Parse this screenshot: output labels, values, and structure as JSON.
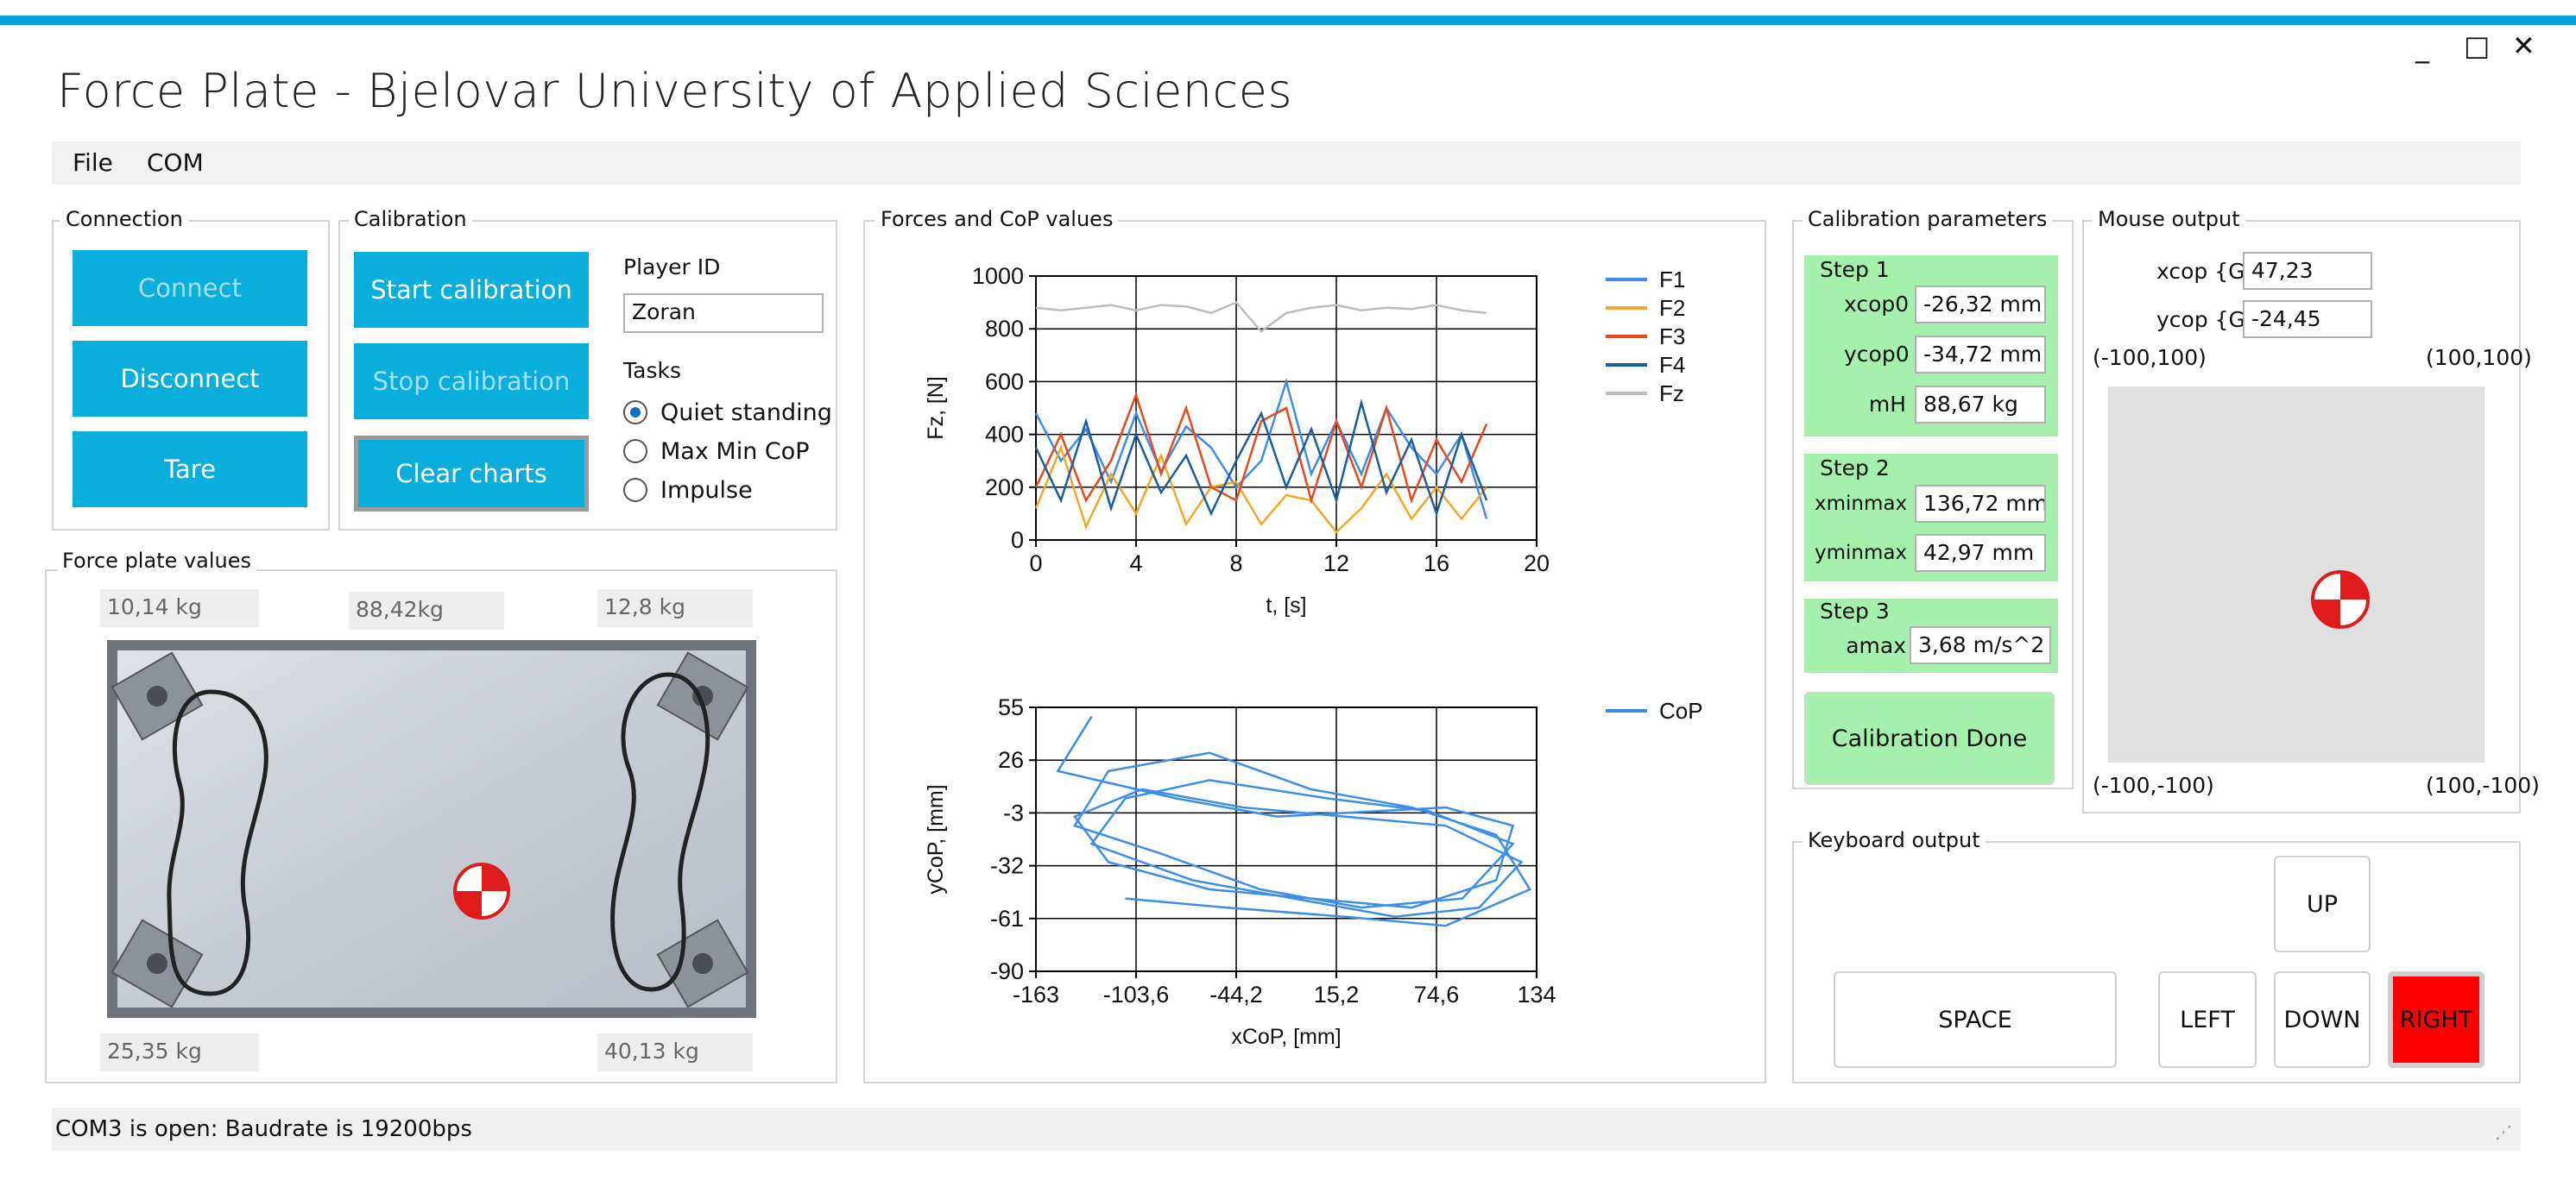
{
  "window": {
    "title": "Force Plate - Bjelovar University of Applied Sciences",
    "minimize": "_",
    "maximize": "□",
    "close": "✕"
  },
  "menu": {
    "file": "File",
    "com": "COM"
  },
  "connection": {
    "label": "Connection",
    "connect": "Connect",
    "disconnect": "Disconnect",
    "tare": "Tare"
  },
  "calibration": {
    "label": "Calibration",
    "start": "Start calibration",
    "stop": "Stop calibration",
    "clear": "Clear charts",
    "player_label": "Player ID",
    "player_value": "Zoran",
    "tasks_label": "Tasks",
    "tasks": [
      "Quiet standing",
      "Max Min CoP",
      "Impulse"
    ],
    "selected_task": "Quiet standing"
  },
  "plate": {
    "label": "Force plate values",
    "top_left": "10,14 kg",
    "top_center": "88,42kg",
    "top_right": "12,8 kg",
    "bottom_left": "25,35 kg",
    "bottom_right": "40,13 kg"
  },
  "charts_group": {
    "label": "Forces and CoP values"
  },
  "chart_data": [
    {
      "type": "line",
      "xlabel": "t, [s]",
      "ylabel": "Fz, [N]",
      "xlim": [
        0,
        20
      ],
      "ylim": [
        0,
        1000
      ],
      "xticks": [
        "0",
        "4",
        "8",
        "12",
        "16",
        "20"
      ],
      "yticks": [
        "0",
        "200",
        "400",
        "600",
        "800",
        "1000"
      ],
      "grid": true,
      "legend_position": "right",
      "colors": {
        "F1": "#3b8fe8",
        "F2": "#f5a623",
        "F3": "#e8491d",
        "F4": "#1a5e9a",
        "Fz": "#bdbdbd"
      },
      "x": [
        0,
        1,
        2,
        3,
        4,
        5,
        6,
        7,
        8,
        9,
        10,
        11,
        12,
        13,
        14,
        15,
        16,
        17,
        18
      ],
      "series": [
        {
          "name": "F1",
          "values": [
            480,
            300,
            420,
            220,
            480,
            260,
            430,
            350,
            200,
            300,
            600,
            250,
            450,
            250,
            500,
            350,
            250,
            400,
            80
          ]
        },
        {
          "name": "F2",
          "values": [
            120,
            350,
            50,
            250,
            100,
            320,
            60,
            200,
            220,
            60,
            170,
            150,
            30,
            120,
            250,
            80,
            200,
            80,
            200
          ]
        },
        {
          "name": "F3",
          "values": [
            200,
            400,
            150,
            300,
            550,
            250,
            500,
            200,
            150,
            450,
            500,
            150,
            450,
            200,
            500,
            150,
            380,
            220,
            440
          ]
        },
        {
          "name": "F4",
          "values": [
            350,
            150,
            450,
            120,
            400,
            180,
            320,
            100,
            300,
            480,
            200,
            420,
            150,
            520,
            180,
            380,
            100,
            400,
            150
          ]
        },
        {
          "name": "Fz",
          "values": [
            880,
            870,
            880,
            890,
            870,
            890,
            885,
            860,
            900,
            790,
            860,
            880,
            890,
            870,
            880,
            875,
            890,
            870,
            860
          ]
        }
      ]
    },
    {
      "type": "line",
      "xlabel": "xCoP, [mm]",
      "ylabel": "yCoP, [mm]",
      "xlim": [
        -163,
        134
      ],
      "ylim": [
        -90,
        55
      ],
      "xticks": [
        "-163",
        "-103,6",
        "-44,2",
        "15,2",
        "74,6",
        "134"
      ],
      "yticks": [
        "-90",
        "-61",
        "-32",
        "-3",
        "26",
        "55"
      ],
      "grid": true,
      "legend_position": "right",
      "colors": {
        "CoP": "#3b8fe8"
      },
      "series": [
        {
          "name": "CoP",
          "x": [
            -130,
            -150,
            -80,
            -20,
            40,
            80,
            120,
            110,
            60,
            0,
            -60,
            -120,
            -140,
            -100,
            -40,
            20,
            80,
            125,
            100,
            50,
            -10,
            -70,
            -130,
            -110,
            -60,
            10,
            70,
            120,
            90,
            30,
            -30,
            -90,
            -140,
            -120,
            -60,
            0,
            60,
            110,
            130,
            80,
            20,
            -50,
            -110
          ],
          "y": [
            50,
            20,
            5,
            -5,
            -2,
            0,
            -10,
            -40,
            -55,
            -50,
            -45,
            -30,
            -5,
            10,
            0,
            -5,
            -10,
            -30,
            -55,
            -60,
            -50,
            -40,
            -20,
            5,
            15,
            5,
            -2,
            -20,
            -50,
            -55,
            -45,
            -25,
            -10,
            20,
            30,
            10,
            0,
            -15,
            -45,
            -65,
            -60,
            -55,
            -50
          ]
        }
      ]
    }
  ],
  "cal_params": {
    "label": "Calibration parameters",
    "step1": {
      "label": "Step 1",
      "xcop0_label": "xcop0",
      "xcop0": "-26,32 mm",
      "ycop0_label": "ycop0",
      "ycop0": "-34,72 mm",
      "mh_label": "mH",
      "mh": "88,67 kg"
    },
    "step2": {
      "label": "Step 2",
      "xminmax_label": "xminmax",
      "xminmax": "136,72 mm",
      "yminmax_label": "yminmax",
      "yminmax": "42,97 mm"
    },
    "step3": {
      "label": "Step 3",
      "amax_label": "amax",
      "amax": "3,68 m/s^2"
    },
    "done": "Calibration Done"
  },
  "mouse": {
    "label": "Mouse output",
    "xcop_label": "xcop {G}",
    "xcop": "47,23",
    "ycop_label": "ycop {G}",
    "ycop": "-24,45",
    "corner_tl": "(-100,100)",
    "corner_tr": "(100,100)",
    "corner_bl": "(-100,-100)",
    "corner_br": "(100,-100)"
  },
  "keyboard": {
    "label": "Keyboard output",
    "space": "SPACE",
    "left": "LEFT",
    "up": "UP",
    "down": "DOWN",
    "right": "RIGHT",
    "active_color": "#ff0000"
  },
  "status": {
    "text": "COM3 is open: Baudrate is 19200bps"
  }
}
